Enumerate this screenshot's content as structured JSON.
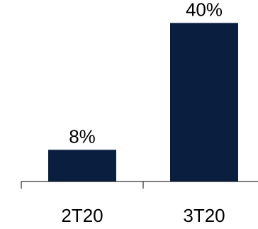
{
  "chart_data": {
    "type": "bar",
    "categories": [
      "2T20",
      "3T20"
    ],
    "values": [
      8,
      40
    ],
    "data_labels": [
      "8%",
      "40%"
    ],
    "title": "",
    "xlabel": "",
    "ylabel": "",
    "ylim": [
      0,
      44
    ],
    "grid": false,
    "legend": "none",
    "colors": {
      "bar": "#0a1e40",
      "axis": "#000000",
      "text": "#000000"
    }
  }
}
